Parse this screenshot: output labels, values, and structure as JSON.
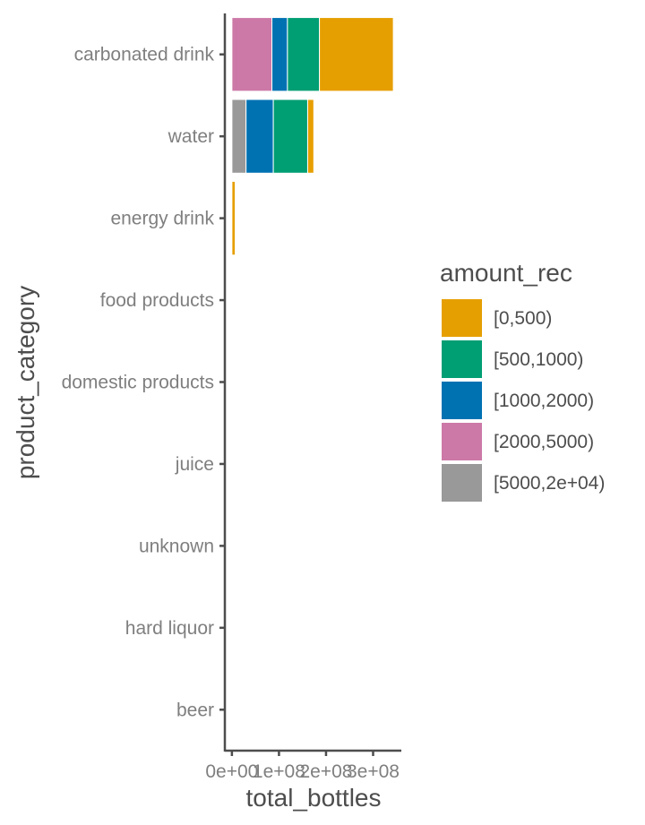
{
  "chart_data": {
    "type": "bar",
    "orientation": "horizontal",
    "stacked": true,
    "xlabel": "total_bottles",
    "ylabel": "product_category",
    "xlim": [
      -15000000,
      360000000
    ],
    "xticks": [
      0,
      100000000,
      200000000,
      300000000
    ],
    "xtick_labels": [
      "0e+00",
      "1e+08",
      "2e+08",
      "3e+08"
    ],
    "grid": false,
    "legend_position": "right",
    "legend_title": "amount_rec",
    "categories": [
      "carbonated drink",
      "water",
      "energy drink",
      "food products",
      "domestic products",
      "juice",
      "unknown",
      "hard liquor",
      "beer"
    ],
    "series": [
      {
        "name": "[5000,2e+04)",
        "color": "#999999",
        "values": [
          0,
          30000000,
          0,
          0,
          0,
          0,
          0,
          0,
          0
        ]
      },
      {
        "name": "[2000,5000)",
        "color": "#CC79A7",
        "values": [
          85000000,
          0,
          0,
          0,
          0,
          0,
          0,
          0,
          0
        ]
      },
      {
        "name": "[1000,2000)",
        "color": "#0072B2",
        "values": [
          33000000,
          58000000,
          0,
          1000000,
          0,
          0,
          0,
          0,
          0
        ]
      },
      {
        "name": "[500,1000)",
        "color": "#009E73",
        "values": [
          68000000,
          73000000,
          0,
          500000,
          0,
          0,
          0,
          0,
          0
        ]
      },
      {
        "name": "[0,500)",
        "color": "#E69F00",
        "values": [
          157000000,
          13000000,
          7000000,
          0,
          0,
          0,
          0,
          0,
          0
        ]
      }
    ]
  }
}
